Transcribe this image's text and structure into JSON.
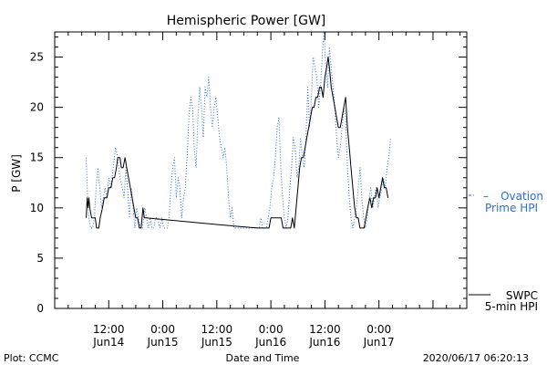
{
  "chart_data": {
    "type": "line",
    "title": "Hemispheric Power [GW]",
    "ylabel": "P [GW]",
    "xlabel": "Date and Time",
    "ylim": [
      0,
      27.5
    ],
    "xlim": [
      0,
      91.5
    ],
    "y_ticks": [
      0,
      5,
      10,
      15,
      20,
      25
    ],
    "x_ticks": [
      {
        "x": 12,
        "time": "12:00",
        "day": "Jun14"
      },
      {
        "x": 24,
        "time": "0:00",
        "day": "Jun15"
      },
      {
        "x": 36,
        "time": "12:00",
        "day": "Jun15"
      },
      {
        "x": 48,
        "time": "0:00",
        "day": "Jun16"
      },
      {
        "x": 60,
        "time": "12:00",
        "day": "Jun16"
      },
      {
        "x": 72,
        "time": "0:00",
        "day": "Jun17"
      }
    ],
    "grid": false,
    "legend_position": "right",
    "series": [
      {
        "name": "SWPC 5-min HPI",
        "color": "#000000",
        "style": "solid",
        "points": [
          [
            7.0,
            9
          ],
          [
            7.2,
            11
          ],
          [
            7.4,
            10
          ],
          [
            7.6,
            11
          ],
          [
            7.8,
            10
          ],
          [
            8.2,
            9
          ],
          [
            8.6,
            9
          ],
          [
            9.0,
            9
          ],
          [
            9.3,
            8
          ],
          [
            9.8,
            8
          ],
          [
            10.1,
            9
          ],
          [
            10.6,
            10
          ],
          [
            11.0,
            11
          ],
          [
            11.6,
            11
          ],
          [
            12.0,
            12
          ],
          [
            12.5,
            12
          ],
          [
            12.9,
            13
          ],
          [
            13.3,
            13
          ],
          [
            13.7,
            14
          ],
          [
            14.0,
            15
          ],
          [
            14.5,
            15
          ],
          [
            14.8,
            14
          ],
          [
            15.2,
            14
          ],
          [
            15.6,
            15
          ],
          [
            16.0,
            14
          ],
          [
            16.4,
            13
          ],
          [
            16.8,
            12
          ],
          [
            17.2,
            11
          ],
          [
            17.6,
            10
          ],
          [
            18.0,
            9
          ],
          [
            18.4,
            9
          ],
          [
            18.8,
            8
          ],
          [
            19.2,
            8
          ],
          [
            19.6,
            10
          ],
          [
            19.9,
            9
          ],
          [
            20.3,
            9
          ],
          [
            37.0,
            8.3
          ],
          [
            45.0,
            8
          ],
          [
            47.6,
            8
          ],
          [
            48.0,
            9
          ],
          [
            48.9,
            9
          ],
          [
            50.3,
            9
          ],
          [
            50.7,
            8
          ],
          [
            52.4,
            8
          ],
          [
            52.8,
            9
          ],
          [
            53.2,
            8
          ],
          [
            53.6,
            10
          ],
          [
            54.0,
            12
          ],
          [
            54.4,
            14
          ],
          [
            54.8,
            15
          ],
          [
            55.2,
            15
          ],
          [
            55.6,
            16
          ],
          [
            56.0,
            17
          ],
          [
            56.4,
            18
          ],
          [
            56.8,
            19
          ],
          [
            57.2,
            20
          ],
          [
            57.6,
            20
          ],
          [
            58.0,
            21
          ],
          [
            58.4,
            21
          ],
          [
            58.8,
            22
          ],
          [
            59.2,
            22
          ],
          [
            59.6,
            21
          ],
          [
            60.0,
            23
          ],
          [
            60.4,
            24
          ],
          [
            60.7,
            25
          ],
          [
            61.0,
            24
          ],
          [
            61.4,
            22
          ],
          [
            61.8,
            21
          ],
          [
            62.2,
            20
          ],
          [
            62.6,
            19
          ],
          [
            63.0,
            18
          ],
          [
            63.4,
            18
          ],
          [
            63.8,
            19
          ],
          [
            64.2,
            20
          ],
          [
            64.6,
            21
          ],
          [
            65.0,
            18
          ],
          [
            65.4,
            16
          ],
          [
            65.8,
            14
          ],
          [
            66.2,
            12
          ],
          [
            66.6,
            10
          ],
          [
            67.0,
            9
          ],
          [
            67.4,
            9
          ],
          [
            67.8,
            8
          ],
          [
            68.2,
            8
          ],
          [
            68.7,
            8
          ],
          [
            69.1,
            9
          ],
          [
            69.5,
            10
          ],
          [
            70.0,
            11
          ],
          [
            70.4,
            10
          ],
          [
            70.8,
            11
          ],
          [
            71.2,
            11
          ],
          [
            71.6,
            12
          ],
          [
            72.0,
            11
          ],
          [
            72.4,
            12
          ],
          [
            72.8,
            13
          ],
          [
            73.2,
            12
          ],
          [
            73.6,
            12
          ],
          [
            74.0,
            11
          ]
        ]
      },
      {
        "name": "Ovation Prime HPI",
        "color": "#2b6fd0",
        "style": "dotted",
        "points": [
          [
            7.0,
            15
          ],
          [
            7.3,
            11
          ],
          [
            7.6,
            9
          ],
          [
            8.0,
            8
          ],
          [
            8.4,
            8
          ],
          [
            8.8,
            9
          ],
          [
            9.2,
            12
          ],
          [
            9.6,
            14
          ],
          [
            10.0,
            12
          ],
          [
            10.4,
            10
          ],
          [
            10.8,
            11
          ],
          [
            11.2,
            12
          ],
          [
            11.6,
            11
          ],
          [
            12.0,
            13
          ],
          [
            12.5,
            12
          ],
          [
            13.0,
            14
          ],
          [
            13.5,
            16
          ],
          [
            14.0,
            15
          ],
          [
            14.5,
            13
          ],
          [
            15.0,
            12
          ],
          [
            15.4,
            11
          ],
          [
            15.8,
            14
          ],
          [
            16.2,
            12
          ],
          [
            16.6,
            9
          ],
          [
            17.0,
            12
          ],
          [
            17.4,
            10
          ],
          [
            17.8,
            8
          ],
          [
            18.2,
            10
          ],
          [
            18.6,
            9
          ],
          [
            19.0,
            8
          ],
          [
            19.5,
            8
          ],
          [
            20.0,
            10
          ],
          [
            20.4,
            9
          ],
          [
            20.8,
            8
          ],
          [
            21.2,
            9
          ],
          [
            21.6,
            8
          ],
          [
            22.0,
            8
          ],
          [
            22.4,
            9
          ],
          [
            22.8,
            9
          ],
          [
            23.4,
            8
          ],
          [
            23.8,
            9
          ],
          [
            24.2,
            8
          ],
          [
            24.6,
            8
          ],
          [
            25.0,
            8
          ],
          [
            25.4,
            9
          ],
          [
            25.8,
            12
          ],
          [
            26.2,
            14
          ],
          [
            26.6,
            15
          ],
          [
            27.0,
            11
          ],
          [
            27.4,
            13
          ],
          [
            27.8,
            12
          ],
          [
            28.2,
            9
          ],
          [
            28.6,
            11
          ],
          [
            29.0,
            12
          ],
          [
            29.4,
            15
          ],
          [
            29.8,
            19
          ],
          [
            30.2,
            21
          ],
          [
            30.6,
            20
          ],
          [
            31.0,
            16
          ],
          [
            31.4,
            14
          ],
          [
            31.8,
            19
          ],
          [
            32.2,
            22
          ],
          [
            32.6,
            20
          ],
          [
            33.0,
            17
          ],
          [
            33.4,
            22
          ],
          [
            33.8,
            21
          ],
          [
            34.2,
            23
          ],
          [
            34.6,
            20
          ],
          [
            35.0,
            18
          ],
          [
            35.4,
            20
          ],
          [
            35.8,
            21
          ],
          [
            36.2,
            19
          ],
          [
            36.6,
            17
          ],
          [
            37.0,
            16
          ],
          [
            37.4,
            15
          ],
          [
            37.8,
            16
          ],
          [
            38.2,
            14
          ],
          [
            38.6,
            11
          ],
          [
            39.0,
            9
          ],
          [
            39.4,
            10
          ],
          [
            39.8,
            8
          ],
          [
            40.2,
            8
          ],
          [
            40.6,
            8
          ],
          [
            41.0,
            8
          ],
          [
            41.4,
            8
          ],
          [
            41.8,
            8
          ],
          [
            42.2,
            8
          ],
          [
            42.6,
            8
          ],
          [
            43.0,
            8
          ],
          [
            43.4,
            8
          ],
          [
            43.8,
            8
          ],
          [
            44.2,
            8
          ],
          [
            44.6,
            8
          ],
          [
            45.0,
            8
          ],
          [
            45.4,
            8
          ],
          [
            45.8,
            9
          ],
          [
            46.2,
            8
          ],
          [
            46.6,
            8
          ],
          [
            47.0,
            8
          ],
          [
            47.4,
            9
          ],
          [
            47.8,
            10
          ],
          [
            48.2,
            12
          ],
          [
            48.6,
            13
          ],
          [
            49.0,
            15
          ],
          [
            49.4,
            18
          ],
          [
            49.8,
            19
          ],
          [
            50.2,
            14
          ],
          [
            50.6,
            11
          ],
          [
            51.0,
            9
          ],
          [
            51.4,
            8
          ],
          [
            51.8,
            9
          ],
          [
            52.2,
            12
          ],
          [
            52.6,
            14
          ],
          [
            53.0,
            17
          ],
          [
            53.4,
            16
          ],
          [
            53.8,
            13
          ],
          [
            54.2,
            14
          ],
          [
            54.6,
            17
          ],
          [
            55.0,
            15
          ],
          [
            55.4,
            14
          ],
          [
            55.8,
            17
          ],
          [
            56.2,
            22
          ],
          [
            56.6,
            18
          ],
          [
            57.0,
            21
          ],
          [
            57.4,
            25
          ],
          [
            57.8,
            24
          ],
          [
            58.2,
            23
          ],
          [
            58.6,
            20
          ],
          [
            59.0,
            22
          ],
          [
            59.4,
            25
          ],
          [
            59.8,
            27.5
          ],
          [
            60.2,
            24
          ],
          [
            60.6,
            22
          ],
          [
            61.0,
            26
          ],
          [
            61.4,
            24
          ],
          [
            61.8,
            22
          ],
          [
            62.2,
            20
          ],
          [
            62.6,
            17
          ],
          [
            63.0,
            15
          ],
          [
            63.4,
            16
          ],
          [
            63.8,
            18
          ],
          [
            64.2,
            20
          ],
          [
            64.6,
            19
          ],
          [
            65.0,
            14
          ],
          [
            65.4,
            11
          ],
          [
            65.8,
            9
          ],
          [
            66.2,
            8
          ],
          [
            66.6,
            9
          ],
          [
            67.0,
            10
          ],
          [
            67.4,
            12
          ],
          [
            67.8,
            14
          ],
          [
            68.2,
            11
          ],
          [
            68.6,
            9
          ],
          [
            69.0,
            8
          ],
          [
            69.4,
            9
          ],
          [
            69.8,
            11
          ],
          [
            70.2,
            12
          ],
          [
            70.6,
            10
          ],
          [
            71.0,
            11
          ],
          [
            71.4,
            12
          ],
          [
            71.8,
            10
          ],
          [
            72.2,
            11
          ],
          [
            72.6,
            12
          ],
          [
            73.0,
            13
          ],
          [
            73.4,
            12
          ],
          [
            73.8,
            14
          ],
          [
            74.2,
            15
          ],
          [
            74.6,
            17
          ]
        ]
      }
    ]
  },
  "legend": {
    "ovation_line1": "Ovation",
    "ovation_line2": "Prime HPI",
    "swpc_line1": "SWPC",
    "swpc_line2": "5-min HPI"
  },
  "footer": {
    "left": "Plot: CCMC",
    "center": "Date and Time",
    "right": "2020/06/17 06:20:13"
  }
}
